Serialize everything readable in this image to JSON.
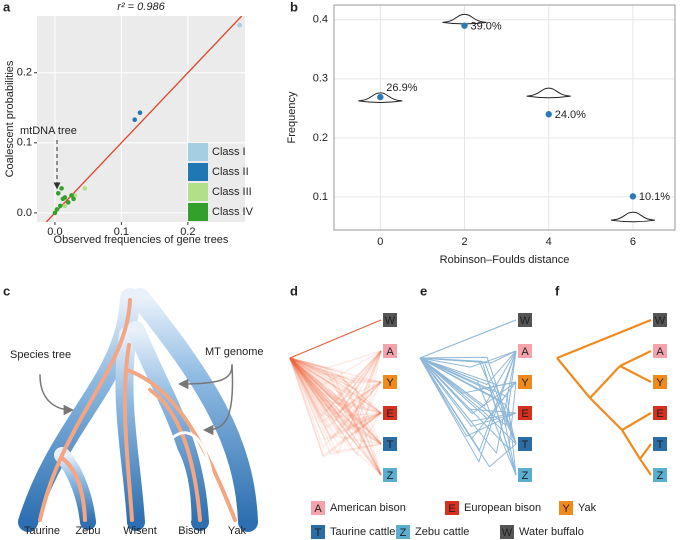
{
  "panel_labels": [
    "a",
    "b",
    "c",
    "d",
    "e",
    "f"
  ],
  "chart_data": [
    {
      "type": "scatter",
      "title": "r² = 0.986",
      "x_label": "Observed frequencies of gene trees",
      "y_label": "Coalescent probabilities",
      "xlim": [
        -0.027,
        0.286
      ],
      "ylim": [
        -0.013,
        0.281
      ],
      "xticks": [
        {
          "value": 0,
          "label": "0.0"
        },
        0.1,
        0.2
      ],
      "yticks": [
        {
          "value": 0,
          "label": "0.0"
        },
        0.1,
        0.2
      ],
      "grid": true,
      "diagonal": true,
      "diagonal_color": "#e0442b",
      "legend": "bottom-right",
      "annotation": "mtDNA tree",
      "series": [
        {
          "name": "Class I",
          "color": "#a6cee3",
          "x": [
            0.278
          ],
          "values": [
            0.268
          ]
        },
        {
          "name": "Class II",
          "color": "#1f78b4",
          "x": [
            0.12,
            0.128
          ],
          "values": [
            0.133,
            0.143
          ]
        },
        {
          "name": "Class III",
          "color": "#b2df8a",
          "x": [
            0.045,
            0.03,
            0.015
          ],
          "values": [
            0.035,
            0.025,
            0.01
          ]
        },
        {
          "name": "Class IV",
          "color": "#33a02c",
          "x": [
            0,
            0.003,
            0.008,
            0.012,
            0.02,
            0.025,
            0.005,
            0.01,
            0.015,
            0.028
          ],
          "values": [
            0,
            0.005,
            0.01,
            0.02,
            0.015,
            0.025,
            0.028,
            0.035,
            0.022,
            0.02
          ]
        }
      ]
    },
    {
      "type": "violin",
      "x_label": "Robinson–Foulds distance",
      "y_label": "Frequency",
      "xlim": [
        -1.1,
        7
      ],
      "ylim": [
        0.044,
        0.425
      ],
      "xticks": [
        0,
        2,
        4,
        6
      ],
      "yticks": [
        0.1,
        0.2,
        0.3,
        0.4
      ],
      "grid": true,
      "points": {
        "color": "#2a7ab9",
        "x": [
          0,
          2,
          4,
          6
        ],
        "values": [
          0.269,
          0.39,
          0.24,
          0.101
        ],
        "value_labels": [
          "26.9%",
          "39.0%",
          "24.0%",
          "10.1%"
        ]
      },
      "violins": {
        "x": [
          0,
          2,
          4,
          6
        ],
        "values": [
          0.266,
          0.399,
          0.274,
          0.064
        ]
      }
    }
  ],
  "diagram": {
    "species_tree_label": "Species tree",
    "mt_genome_label": "MT genome",
    "taxa": [
      "Taurine",
      "Zebu",
      "Wisent",
      "Bison",
      "Yak"
    ]
  },
  "tips": [
    "W",
    "A",
    "Y",
    "E",
    "T",
    "Z"
  ],
  "legend": {
    "items": [
      {
        "code": "A",
        "name": "American bison",
        "color": "#f4a3ad"
      },
      {
        "code": "E",
        "name": "European bison",
        "color": "#d7301f"
      },
      {
        "code": "Y",
        "name": "Yak",
        "color": "#f08a1c"
      },
      {
        "code": "T",
        "name": "Taurine cattle",
        "color": "#2b6ea6"
      },
      {
        "code": "Z",
        "name": "Zebu cattle",
        "color": "#5aaed0"
      },
      {
        "code": "W",
        "name": "Water buffalo",
        "color": "#555555"
      }
    ]
  }
}
